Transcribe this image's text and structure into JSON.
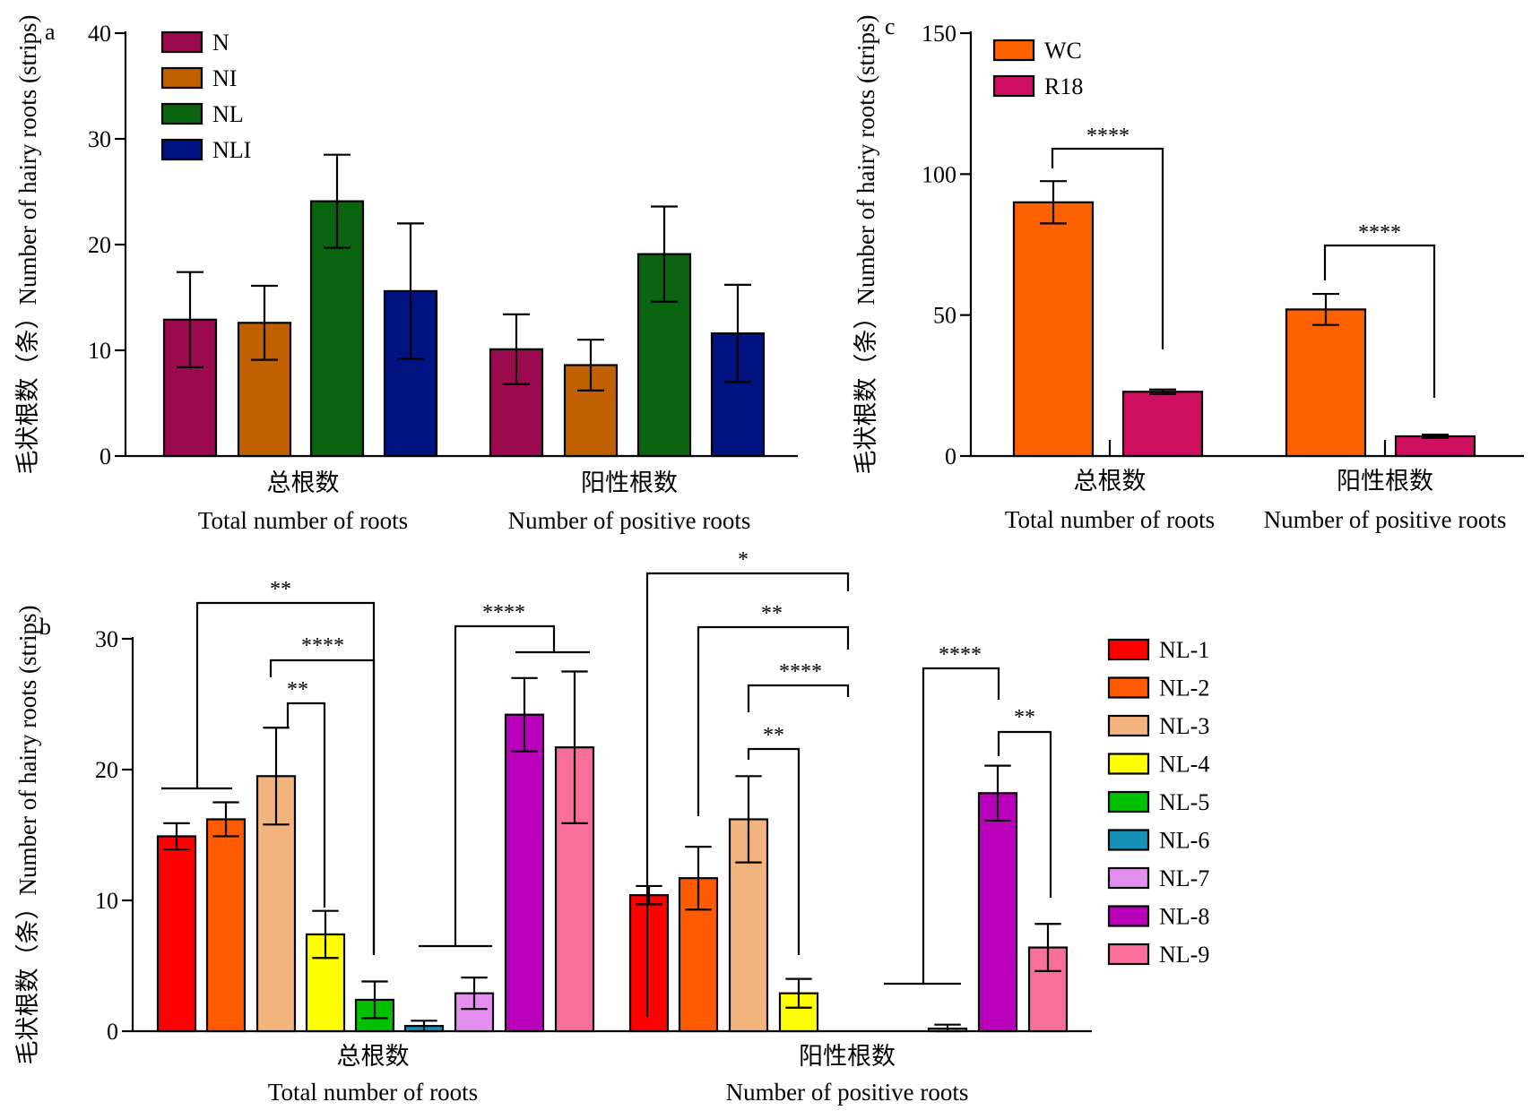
{
  "chart_data": [
    {
      "panel": "a",
      "type": "bar",
      "ylabel": "毛状根数（条）Number of hairy roots (strips)",
      "ylim": [
        0,
        40
      ],
      "yticks": [
        0,
        10,
        20,
        30,
        40
      ],
      "categories": [
        {
          "cn": "总根数",
          "en": "Total number of roots"
        },
        {
          "cn": "阳性根数",
          "en": "Number of positive roots"
        }
      ],
      "legend_position": "top-left",
      "series": [
        {
          "name": "N",
          "color": "#9b0a4c",
          "values": [
            12.9,
            10.1
          ],
          "errors": [
            4.5,
            3.3
          ]
        },
        {
          "name": "NI",
          "color": "#c06000",
          "values": [
            12.6,
            8.6
          ],
          "errors": [
            3.5,
            2.4
          ]
        },
        {
          "name": "NL",
          "color": "#0a6410",
          "values": [
            24.1,
            19.1
          ],
          "errors": [
            4.4,
            4.5
          ]
        },
        {
          "name": "NLI",
          "color": "#001380",
          "values": [
            15.6,
            11.6
          ],
          "errors": [
            6.4,
            4.6
          ]
        }
      ]
    },
    {
      "panel": "c",
      "type": "bar",
      "ylabel": "毛状根数（条）Number of hairy roots (strips)",
      "ylim": [
        0,
        150
      ],
      "yticks": [
        0,
        50,
        100,
        150
      ],
      "categories": [
        {
          "cn": "总根数",
          "en": "Total number of roots"
        },
        {
          "cn": "阳性根数",
          "en": "Number of positive roots"
        }
      ],
      "legend_position": "top-left",
      "series": [
        {
          "name": "WC",
          "color": "#ff6000",
          "values": [
            90,
            52
          ],
          "errors": [
            7.5,
            5.5
          ]
        },
        {
          "name": "R18",
          "color": "#cf1060",
          "values": [
            22.8,
            7.0
          ],
          "errors": [
            0.8,
            0.6
          ]
        }
      ],
      "significance": [
        {
          "label": "****",
          "category": "总根数",
          "between": [
            "WC",
            "R18"
          ]
        },
        {
          "label": "****",
          "category": "阳性根数",
          "between": [
            "WC",
            "R18"
          ]
        }
      ]
    },
    {
      "panel": "b",
      "type": "bar",
      "ylabel": "毛状根数（条）Number of hairy roots (strips)",
      "ylim": [
        0,
        30
      ],
      "yticks": [
        0,
        10,
        20,
        30
      ],
      "categories": [
        {
          "cn": "总根数",
          "en": "Total number of roots"
        },
        {
          "cn": "阳性根数",
          "en": "Number of positive roots"
        }
      ],
      "legend_position": "right",
      "series": [
        {
          "name": "NL-1",
          "color": "#ff0000",
          "values": [
            14.9,
            10.4
          ],
          "errors": [
            1.0,
            0.7
          ]
        },
        {
          "name": "NL-2",
          "color": "#ff5a00",
          "values": [
            16.2,
            11.7
          ],
          "errors": [
            1.3,
            2.4
          ]
        },
        {
          "name": "NL-3",
          "color": "#f2b47c",
          "values": [
            19.5,
            16.2
          ],
          "errors": [
            3.7,
            3.3
          ]
        },
        {
          "name": "NL-4",
          "color": "#ffff00",
          "values": [
            7.4,
            2.9
          ],
          "errors": [
            1.8,
            1.1
          ]
        },
        {
          "name": "NL-5",
          "color": "#00c000",
          "values": [
            2.4,
            0
          ],
          "errors": [
            1.4,
            0
          ]
        },
        {
          "name": "NL-6",
          "color": "#1890b8",
          "values": [
            0.4,
            0
          ],
          "errors": [
            0.4,
            0
          ]
        },
        {
          "name": "NL-7",
          "color": "#e48ef0",
          "values": [
            2.9,
            0.2
          ],
          "errors": [
            1.2,
            0.3
          ]
        },
        {
          "name": "NL-8",
          "color": "#bb00bb",
          "values": [
            24.2,
            18.2
          ],
          "errors": [
            2.8,
            2.1
          ]
        },
        {
          "name": "NL-9",
          "color": "#f8709a",
          "values": [
            21.7,
            6.4
          ],
          "errors": [
            5.8,
            1.8
          ]
        }
      ],
      "significance": [
        {
          "label": "**",
          "category": "总根数",
          "between": [
            "NL-1 + NL-2",
            "NL-5"
          ]
        },
        {
          "label": "****",
          "category": "总根数",
          "between": [
            "NL-3",
            "NL-5"
          ]
        },
        {
          "label": "**",
          "category": "总根数",
          "between": [
            "NL-3",
            "NL-4"
          ]
        },
        {
          "label": "****",
          "category": "总根数",
          "between": [
            "NL-6 + NL-7",
            "NL-8 + NL-9"
          ]
        },
        {
          "label": "*",
          "category": "阳性根数",
          "between": [
            "NL-1",
            "NL-5"
          ]
        },
        {
          "label": "**",
          "category": "阳性根数",
          "between": [
            "NL-2",
            "NL-5"
          ]
        },
        {
          "label": "****",
          "category": "阳性根数",
          "between": [
            "NL-3",
            "NL-5"
          ]
        },
        {
          "label": "**",
          "category": "阳性根数",
          "between": [
            "NL-3",
            "NL-4"
          ]
        },
        {
          "label": "****",
          "category": "阳性根数",
          "between": [
            "NL-6 + NL-7",
            "NL-8"
          ]
        },
        {
          "label": "**",
          "category": "阳性根数",
          "between": [
            "NL-8",
            "NL-9"
          ]
        }
      ]
    }
  ]
}
